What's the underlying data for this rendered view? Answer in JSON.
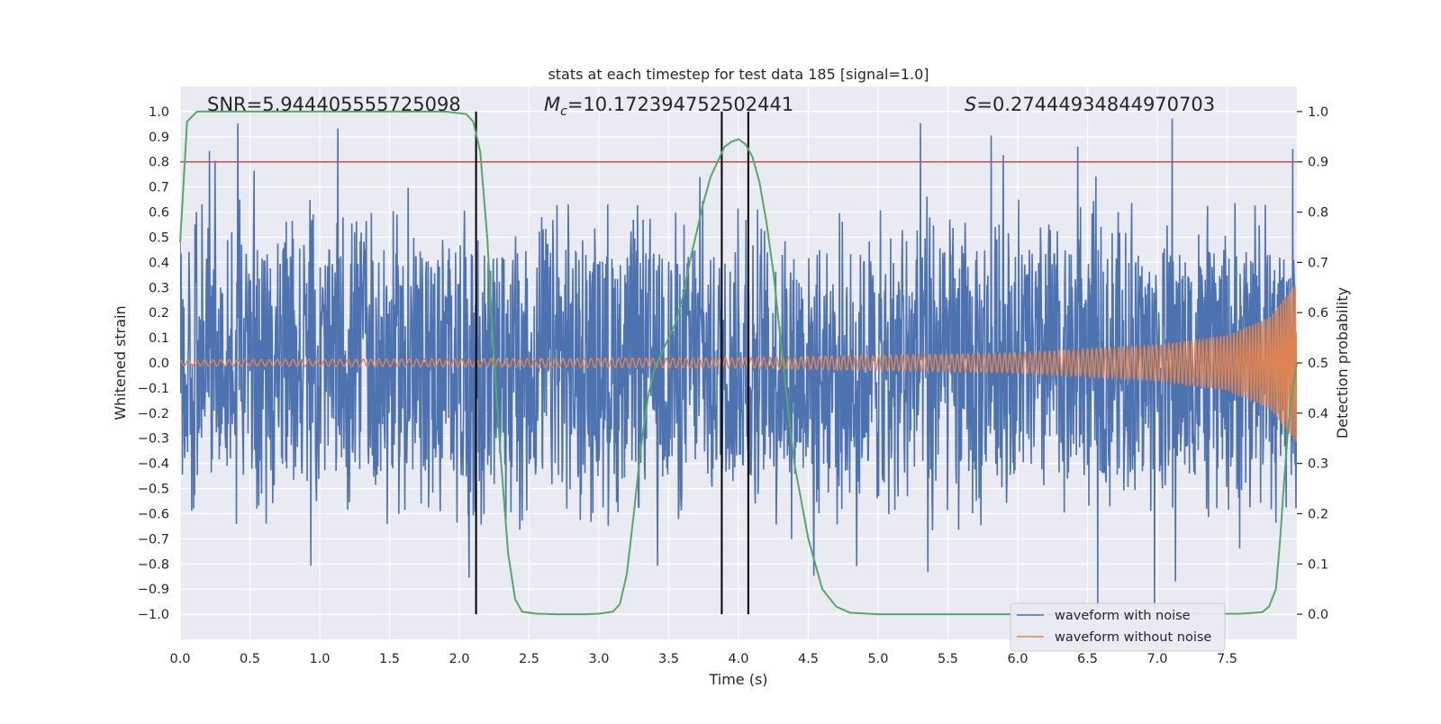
{
  "chart_data": {
    "type": "line",
    "title": "stats at each timestep for test data 185 [signal=1.0]",
    "xlabel": "Time (s)",
    "ylabel_left": "Whitened strain",
    "ylabel_right": "Detection probability",
    "xlim": [
      0.0,
      8.0
    ],
    "ylim_left": [
      -1.1,
      1.1
    ],
    "ylim_right": [
      -0.05,
      1.05
    ],
    "x_ticks": [
      "0.0",
      "0.5",
      "1.0",
      "1.5",
      "2.0",
      "2.5",
      "3.0",
      "3.5",
      "4.0",
      "4.5",
      "5.0",
      "5.5",
      "6.0",
      "6.5",
      "7.0",
      "7.5"
    ],
    "y_left_ticks": [
      "1.0",
      "0.9",
      "0.8",
      "0.7",
      "0.6",
      "0.5",
      "0.4",
      "0.3",
      "0.2",
      "0.1",
      "0.0",
      "-0.1",
      "-0.2",
      "-0.3",
      "-0.4",
      "-0.5",
      "-0.6",
      "-0.7",
      "-0.8",
      "-0.9",
      "-1.0"
    ],
    "y_right_ticks": [
      "1.0",
      "0.9",
      "0.8",
      "0.7",
      "0.6",
      "0.5",
      "0.4",
      "0.3",
      "0.2",
      "0.1",
      "0.0"
    ],
    "annotations": {
      "snr": "SNR=5.944405555725098",
      "mc_symbol": "M",
      "mc_sub": "c",
      "mc_value": "=10.172394752502441",
      "s_symbol": "S",
      "s_value": "=0.27444934844970703"
    },
    "threshold": {
      "value": 0.9,
      "color": "#c44e52"
    },
    "vertical_lines_x": [
      2.12,
      3.88,
      4.07
    ],
    "series": [
      {
        "name": "waveform with noise",
        "color": "#4c72b0",
        "description_envelope": "noisy whitened strain, roughly within ±0.6 with spikes up to ±0.95"
      },
      {
        "name": "waveform without noise",
        "color": "#dd8452",
        "amplitude_points": [
          [
            0.0,
            0.012
          ],
          [
            4.0,
            0.02
          ],
          [
            6.0,
            0.04
          ],
          [
            7.0,
            0.07
          ],
          [
            7.5,
            0.11
          ],
          [
            7.8,
            0.18
          ],
          [
            8.0,
            0.32
          ]
        ]
      },
      {
        "name": "detection probability",
        "color": "#55a868",
        "axis": "right",
        "x": [
          0.0,
          0.05,
          0.12,
          0.5,
          1.0,
          1.5,
          1.9,
          2.05,
          2.1,
          2.15,
          2.2,
          2.25,
          2.3,
          2.35,
          2.4,
          2.45,
          2.55,
          2.7,
          2.9,
          3.0,
          3.1,
          3.15,
          3.2,
          3.25,
          3.3,
          3.35,
          3.4,
          3.45,
          3.5,
          3.55,
          3.6,
          3.65,
          3.7,
          3.75,
          3.8,
          3.85,
          3.9,
          3.95,
          4.0,
          4.05,
          4.1,
          4.15,
          4.2,
          4.25,
          4.3,
          4.35,
          4.4,
          4.5,
          4.6,
          4.7,
          4.8,
          5.0,
          6.0,
          7.0,
          7.6,
          7.75,
          7.8,
          7.85,
          7.88,
          7.91,
          7.94,
          7.97,
          8.0
        ],
        "y": [
          0.74,
          0.98,
          1.0,
          1.0,
          1.0,
          1.0,
          1.0,
          0.995,
          0.98,
          0.92,
          0.75,
          0.5,
          0.3,
          0.12,
          0.03,
          0.005,
          0.001,
          0.0,
          0.0,
          0.001,
          0.005,
          0.02,
          0.08,
          0.2,
          0.33,
          0.43,
          0.49,
          0.52,
          0.55,
          0.58,
          0.63,
          0.7,
          0.76,
          0.82,
          0.87,
          0.9,
          0.93,
          0.94,
          0.945,
          0.935,
          0.91,
          0.86,
          0.78,
          0.68,
          0.55,
          0.42,
          0.3,
          0.15,
          0.05,
          0.015,
          0.003,
          0.0,
          0.0,
          0.0,
          0.001,
          0.004,
          0.015,
          0.05,
          0.15,
          0.27,
          0.38,
          0.45,
          0.5
        ]
      }
    ],
    "legend": {
      "position": "lower-right"
    },
    "grid": true
  }
}
